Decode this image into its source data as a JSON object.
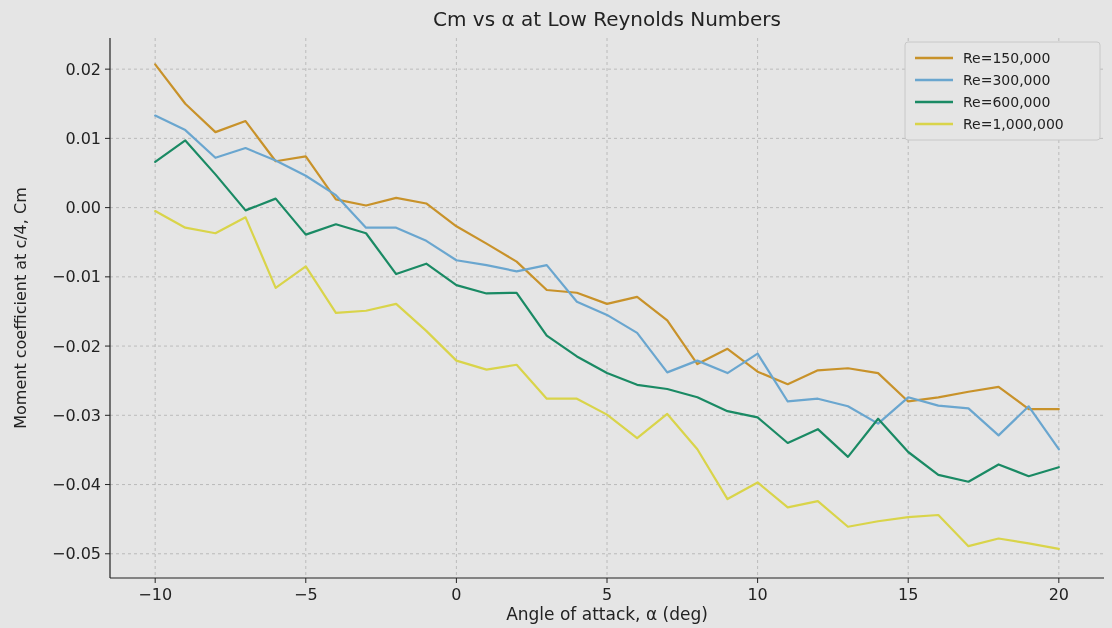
{
  "chart_data": {
    "type": "line",
    "title": "Cm vs α at Low Reynolds Numbers",
    "xlabel": "Angle of attack, α (deg)",
    "ylabel": "Moment coefficient at c/4, Cm",
    "x": [
      -10,
      -9,
      -8,
      -7,
      -6,
      -5,
      -4,
      -3,
      -2,
      -1,
      0,
      1,
      2,
      3,
      4,
      5,
      6,
      7,
      8,
      9,
      10,
      11,
      12,
      13,
      14,
      15,
      16,
      17,
      18,
      19,
      20
    ],
    "series": [
      {
        "name": "Re=150,000",
        "color": "#c8922a",
        "values": [
          0.0207,
          0.015,
          0.0109,
          0.0125,
          0.0067,
          0.0074,
          0.0012,
          0.0003,
          0.0014,
          0.0006,
          -0.0027,
          -0.0052,
          -0.0078,
          -0.0119,
          -0.0123,
          -0.0139,
          -0.0129,
          -0.0163,
          -0.0226,
          -0.0204,
          -0.0237,
          -0.0255,
          -0.0235,
          -0.0232,
          -0.0239,
          -0.028,
          -0.0274,
          -0.0266,
          -0.0259,
          -0.0291,
          -0.0291
        ]
      },
      {
        "name": "Re=300,000",
        "color": "#6aa6cf",
        "values": [
          0.0133,
          0.0112,
          0.0072,
          0.0086,
          0.0068,
          0.0046,
          0.0018,
          -0.0029,
          -0.0029,
          -0.0048,
          -0.0076,
          -0.0083,
          -0.0092,
          -0.0083,
          -0.0136,
          -0.0155,
          -0.0181,
          -0.0238,
          -0.0221,
          -0.0239,
          -0.0211,
          -0.028,
          -0.0276,
          -0.0287,
          -0.0312,
          -0.0274,
          -0.0286,
          -0.029,
          -0.0329,
          -0.0287,
          -0.0349
        ]
      },
      {
        "name": "Re=600,000",
        "color": "#1a8a64",
        "values": [
          0.0066,
          0.0097,
          0.0048,
          -0.0004,
          0.0013,
          -0.0039,
          -0.0024,
          -0.0037,
          -0.0096,
          -0.0081,
          -0.0112,
          -0.0124,
          -0.0123,
          -0.0185,
          -0.0215,
          -0.0239,
          -0.0256,
          -0.0262,
          -0.0274,
          -0.0294,
          -0.0303,
          -0.034,
          -0.032,
          -0.036,
          -0.0305,
          -0.0353,
          -0.0386,
          -0.0396,
          -0.0371,
          -0.0388,
          -0.0375
        ]
      },
      {
        "name": "Re=1,000,000",
        "color": "#d9d44a",
        "values": [
          -0.0005,
          -0.0029,
          -0.0037,
          -0.0014,
          -0.0116,
          -0.0085,
          -0.0152,
          -0.0149,
          -0.0139,
          -0.0178,
          -0.0221,
          -0.0234,
          -0.0227,
          -0.0276,
          -0.0276,
          -0.0299,
          -0.0333,
          -0.0298,
          -0.0349,
          -0.0421,
          -0.0397,
          -0.0433,
          -0.0424,
          -0.0461,
          -0.0453,
          -0.0447,
          -0.0444,
          -0.0489,
          -0.0478,
          -0.0485,
          -0.0493
        ]
      }
    ],
    "xlim": [
      -11.5,
      21.5
    ],
    "xticks": [
      {
        "value": -10,
        "label": "−10"
      },
      {
        "value": -5,
        "label": "−5"
      },
      0,
      5,
      10,
      15,
      20
    ],
    "ylim": [
      -0.0535,
      0.0245
    ],
    "yticks": [
      {
        "value": -0.05,
        "label": "−0.05"
      },
      {
        "value": -0.04,
        "label": "−0.04"
      },
      {
        "value": -0.03,
        "label": "−0.03"
      },
      {
        "value": -0.02,
        "label": "−0.02"
      },
      {
        "value": -0.01,
        "label": "−0.01"
      },
      {
        "value": 0,
        "label": "0.00"
      },
      {
        "value": 0.01,
        "label": "0.01"
      },
      {
        "value": 0.02,
        "label": "0.02"
      }
    ],
    "grid": true,
    "legend": "top right",
    "line_style": "solid"
  }
}
